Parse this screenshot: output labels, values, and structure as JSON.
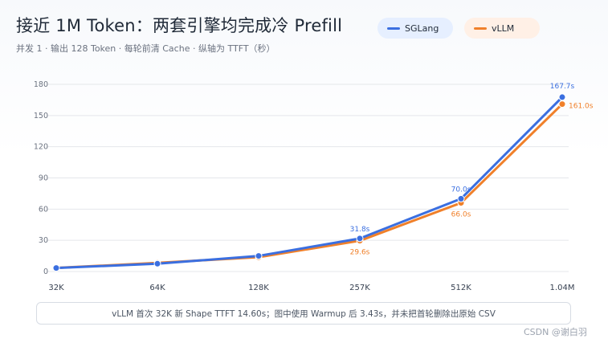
{
  "header": {
    "title": "接近 1M Token：两套引擎均完成冷 Prefill",
    "subtitle": "并发 1 · 输出 128 Token · 每轮前清 Cache · 纵轴为 TTFT（秒）"
  },
  "footnote": "vLLM 首次 32K 新 Shape TTFT 14.60s；图中使用 Warmup 后 3.43s，并未把首轮删除出原始 CSV",
  "watermark": "CSDN @谢白羽",
  "colors": {
    "sglang": "#3b6fe0",
    "vllm": "#f0802a"
  },
  "chart_data": {
    "type": "line",
    "title": "接近 1M Token：两套引擎均完成冷 Prefill",
    "categories": [
      "32K",
      "64K",
      "128K",
      "257K",
      "512K",
      "1.04M"
    ],
    "ylim": [
      0,
      180
    ],
    "yticks": [
      0,
      30,
      60,
      90,
      120,
      150,
      180
    ],
    "grid": true,
    "legend_position": "top-right",
    "series": [
      {
        "name": "SGLang",
        "color": "#3b6fe0",
        "values": [
          3.4,
          7.5,
          15.0,
          31.8,
          70.0,
          167.7
        ],
        "labels": [
          "",
          "",
          "",
          "31.8s",
          "70.0s",
          "167.7s"
        ]
      },
      {
        "name": "vLLM",
        "color": "#f0802a",
        "values": [
          3.43,
          8.3,
          13.8,
          29.6,
          66.0,
          161.0
        ],
        "labels": [
          "",
          "",
          "",
          "29.6s",
          "66.0s",
          "161.0s"
        ]
      }
    ]
  }
}
